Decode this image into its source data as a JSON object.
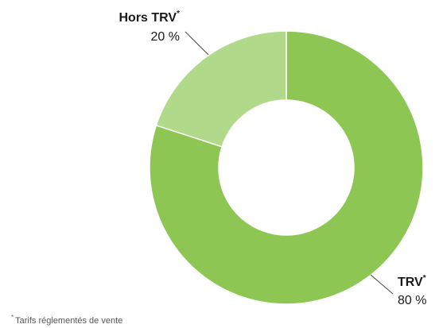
{
  "chart_data": {
    "type": "donut",
    "categories": [
      "TRV",
      "Hors TRV"
    ],
    "values": [
      80,
      20
    ],
    "value_labels": [
      "80 %",
      "20 %"
    ],
    "colors": [
      "#8dc652",
      "#b1d98a"
    ],
    "footnote_marker": "*",
    "footnote": "Tarifs réglementés de vente"
  }
}
